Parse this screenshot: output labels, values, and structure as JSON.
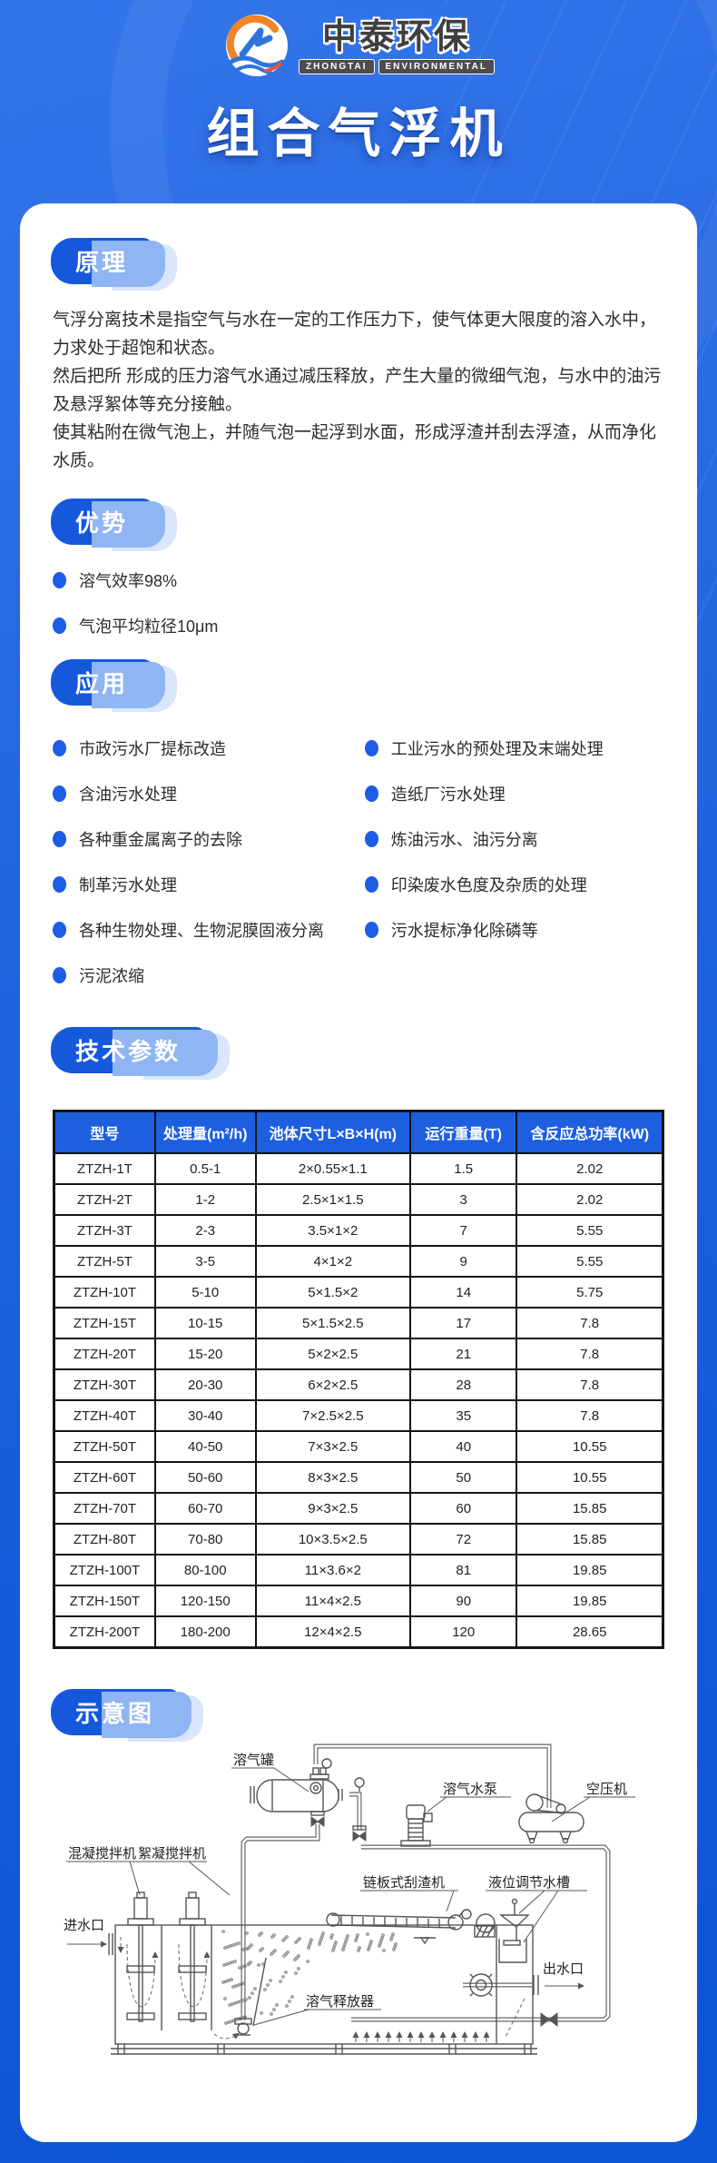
{
  "colors": {
    "accent": "#1558dc",
    "bullet": "#1b5de4",
    "table_header": "#1e5fe0",
    "page_bg": "#1c5ed9",
    "footer_bg": "#0b55d6"
  },
  "header": {
    "logo_cn": "中泰环保",
    "logo_en_1": "ZHONGTAI",
    "logo_en_2": "ENVIRONMENTAL",
    "title": "组合气浮机"
  },
  "sections": {
    "principle": {
      "heading": "原理",
      "p1": "气浮分离技术是指空气与水在一定的工作压力下，使气体更大限度的溶入水中，力求处于超饱和状态。",
      "p2": "然后把所 形成的压力溶气水通过减压释放，产生大量的微细气泡，与水中的油污及悬浮絮体等充分接触。",
      "p3": "使其粘附在微气泡上，并随气泡一起浮到水面，形成浮渣并刮去浮渣，从而净化水质。"
    },
    "advantages": {
      "heading": "优势",
      "items": [
        "溶气效率98%",
        "气泡平均粒径10μm"
      ]
    },
    "applications": {
      "heading": "应用",
      "left": [
        "市政污水厂提标改造",
        "含油污水处理",
        "各种重金属离子的去除",
        "制革污水处理",
        "各种生物处理、生物泥膜固液分离",
        "污泥浓缩"
      ],
      "right": [
        "工业污水的预处理及末端处理",
        "造纸厂污水处理",
        "炼油污水、油污分离",
        "印染废水色度及杂质的处理",
        "污水提标净化除磷等"
      ]
    },
    "specs": {
      "heading": "技术参数",
      "table": {
        "headers": [
          "型号",
          "处理量(m²/h)",
          "池体尺寸L×B×H(m)",
          "运行重量(T)",
          "含反应总功率(kW)"
        ],
        "rows": [
          [
            "ZTZH-1T",
            "0.5-1",
            "2×0.55×1.1",
            "1.5",
            "2.02"
          ],
          [
            "ZTZH-2T",
            "1-2",
            "2.5×1×1.5",
            "3",
            "2.02"
          ],
          [
            "ZTZH-3T",
            "2-3",
            "3.5×1×2",
            "7",
            "5.55"
          ],
          [
            "ZTZH-5T",
            "3-5",
            "4×1×2",
            "9",
            "5.55"
          ],
          [
            "ZTZH-10T",
            "5-10",
            "5×1.5×2",
            "14",
            "5.75"
          ],
          [
            "ZTZH-15T",
            "10-15",
            "5×1.5×2.5",
            "17",
            "7.8"
          ],
          [
            "ZTZH-20T",
            "15-20",
            "5×2×2.5",
            "21",
            "7.8"
          ],
          [
            "ZTZH-30T",
            "20-30",
            "6×2×2.5",
            "28",
            "7.8"
          ],
          [
            "ZTZH-40T",
            "30-40",
            "7×2.5×2.5",
            "35",
            "7.8"
          ],
          [
            "ZTZH-50T",
            "40-50",
            "7×3×2.5",
            "40",
            "10.55"
          ],
          [
            "ZTZH-60T",
            "50-60",
            "8×3×2.5",
            "50",
            "10.55"
          ],
          [
            "ZTZH-70T",
            "60-70",
            "9×3×2.5",
            "60",
            "15.85"
          ],
          [
            "ZTZH-80T",
            "70-80",
            "10×3.5×2.5",
            "72",
            "15.85"
          ],
          [
            "ZTZH-100T",
            "80-100",
            "11×3.6×2",
            "81",
            "19.85"
          ],
          [
            "ZTZH-150T",
            "120-150",
            "11×4×2.5",
            "90",
            "19.85"
          ],
          [
            "ZTZH-200T",
            "180-200",
            "12×4×2.5",
            "120",
            "28.65"
          ]
        ]
      }
    },
    "schematic": {
      "heading": "示意图",
      "labels": {
        "tank": "溶气罐",
        "pump": "溶气水泵",
        "compressor": "空压机",
        "mixer1": "混凝搅拌机",
        "mixer2": "絮凝搅拌机",
        "scraper": "链板式刮渣机",
        "level_tank": "液位调节水槽",
        "inlet": "进水口",
        "outlet": "出水口",
        "releaser": "溶气释放器"
      }
    }
  }
}
